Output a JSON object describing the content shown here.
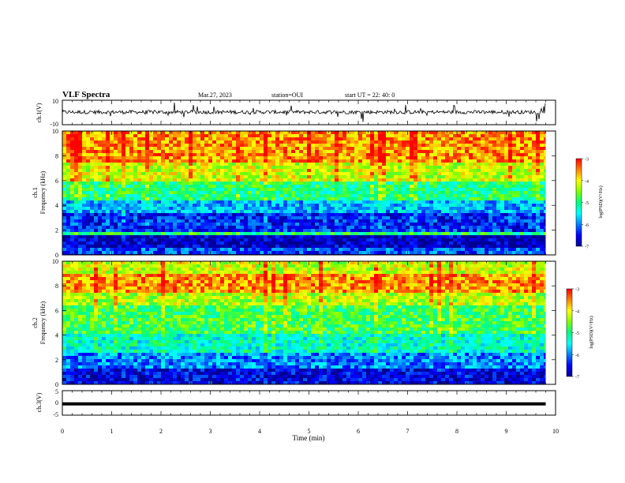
{
  "header": {
    "title": "VLF Spectra",
    "date": "Mar.27, 2023",
    "station": "station=OUI",
    "start_time": "start  UT  =   22: 40: 0"
  },
  "colorscale": [
    "#00008f",
    "#0000ff",
    "#0080ff",
    "#00ffff",
    "#00ff80",
    "#80ff00",
    "#ffff00",
    "#ff8000",
    "#ff0000"
  ],
  "chart_data": [
    {
      "type": "line",
      "ylabel": "ch.1(V)",
      "ylim": [
        -10,
        10
      ],
      "yticks": [
        "10",
        "-10"
      ],
      "x": [
        0,
        9.8
      ],
      "series": [
        {
          "values": [
            0,
            0
          ]
        }
      ]
    },
    {
      "type": "heatmap",
      "ylabel_top": "ch.1",
      "ylabel": "Frequency (kHz)",
      "ylim": [
        0,
        10
      ],
      "yticks": [
        "0",
        "2",
        "4",
        "6",
        "8",
        "10"
      ],
      "xlim": [
        0,
        9.8
      ],
      "colorbar": {
        "label": "log(PSD)(V²/Hz)",
        "range": [
          -7,
          -3
        ],
        "ticks": [
          "-3",
          "-4",
          "-5",
          "-6",
          "-7"
        ]
      },
      "bands_khz_to_log_psd": [
        {
          "f": [
            0,
            0.5
          ],
          "v": -6.2
        },
        {
          "f": [
            0.5,
            1.5
          ],
          "v": -6.8
        },
        {
          "f": [
            1.5,
            1.9
          ],
          "v": -5.0
        },
        {
          "f": [
            1.9,
            3.5
          ],
          "v": -6.4
        },
        {
          "f": [
            3.5,
            4.5
          ],
          "v": -5.8
        },
        {
          "f": [
            4.5,
            6.0
          ],
          "v": -5.0
        },
        {
          "f": [
            6.0,
            7.5
          ],
          "v": -4.2
        },
        {
          "f": [
            7.5,
            10
          ],
          "v": -3.6
        }
      ]
    },
    {
      "type": "heatmap",
      "ylabel_top": "ch.2",
      "ylabel": "Frequency (kHz)",
      "ylim": [
        0,
        10
      ],
      "yticks": [
        "0",
        "2",
        "4",
        "6",
        "8",
        "10"
      ],
      "xlim": [
        0,
        9.8
      ],
      "colorbar": {
        "label": "log(PSD)(V²/Hz)",
        "range": [
          -7,
          -3
        ],
        "ticks": [
          "-3",
          "-4",
          "-5",
          "-6",
          "-7"
        ]
      },
      "bands_khz_to_log_psd": [
        {
          "f": [
            0,
            1.3
          ],
          "v": -6.6
        },
        {
          "f": [
            1.3,
            2.5
          ],
          "v": -6.0
        },
        {
          "f": [
            2.5,
            4.0
          ],
          "v": -5.3
        },
        {
          "f": [
            4.0,
            6.5
          ],
          "v": -4.8
        },
        {
          "f": [
            6.5,
            7.5
          ],
          "v": -4.3
        },
        {
          "f": [
            7.5,
            9.0
          ],
          "v": -3.6
        },
        {
          "f": [
            9.0,
            10
          ],
          "v": -4.2
        }
      ]
    },
    {
      "type": "line",
      "ylabel": "ch.3(V)",
      "ylim": [
        -5,
        5
      ],
      "yticks": [
        "5",
        "0",
        "-5"
      ],
      "x": [
        0,
        9.8
      ],
      "series": [
        {
          "values": [
            -0.4,
            -0.4
          ]
        }
      ]
    }
  ],
  "xaxis": {
    "label": "Time (min)",
    "range": [
      0,
      10
    ],
    "ticks": [
      "0",
      "1",
      "2",
      "3",
      "4",
      "5",
      "6",
      "7",
      "8",
      "9",
      "10"
    ]
  }
}
